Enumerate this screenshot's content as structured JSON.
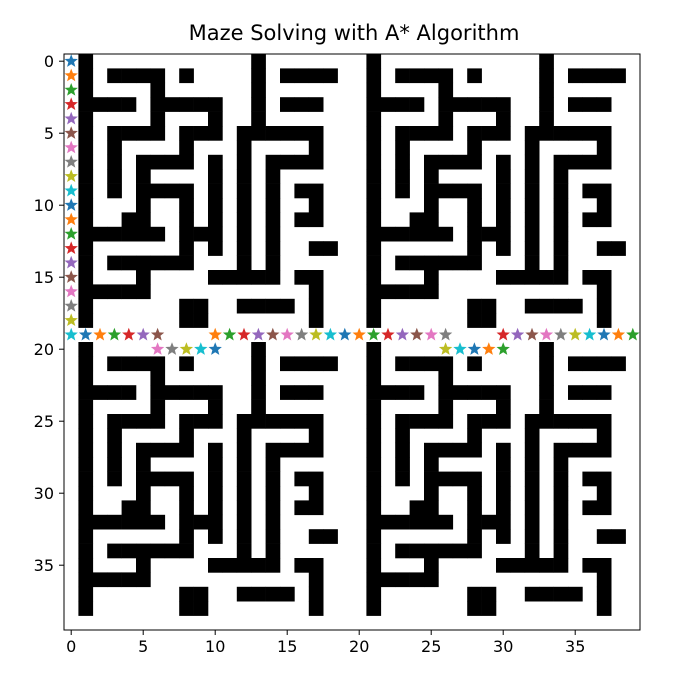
{
  "chart_data": {
    "type": "heatmap",
    "title": "Maze Solving with A* Algorithm",
    "xlabel": "",
    "ylabel": "",
    "grid": false,
    "rows": 40,
    "cols": 40,
    "xlim": [
      -0.5,
      39.5
    ],
    "ylim": [
      39.5,
      -0.5
    ],
    "x_ticks": [
      0,
      5,
      10,
      15,
      20,
      25,
      30,
      35
    ],
    "y_ticks": [
      0,
      5,
      10,
      15,
      20,
      25,
      30,
      35
    ],
    "wall_color": "#000000",
    "path_color": "#ffffff",
    "maze_quadrant": [
      "0100000000000100000",
      "0101111010000101111",
      "0100001000000100000",
      "0111101111100101110",
      "0100001000100100000",
      "0101111011101111110",
      "0101000010001000010",
      "0101011110101011110",
      "0101010000101010000",
      "0101011110101010110",
      "0100010010101010010",
      "0100110010101010110",
      "0111111011101010000",
      "0100000010101010011",
      "0101111110001010000",
      "0100010000111110110",
      "0111110000000000010",
      "0100000011001111010",
      "0100000011000000010",
      "0000000000000000000"
    ],
    "quadrant_offsets": [
      [
        0,
        0
      ],
      [
        0,
        20
      ],
      [
        20,
        0
      ],
      [
        20,
        20
      ]
    ],
    "marker_colors": [
      "#1f77b4",
      "#ff7f0e",
      "#2ca02c",
      "#d62728",
      "#9467bd",
      "#8c564b",
      "#e377c2",
      "#7f7f7f",
      "#bcbd22",
      "#17becf"
    ],
    "series": [
      {
        "type": "scatter",
        "marker": "star",
        "points": [
          [
            0,
            0
          ],
          [
            0,
            1
          ],
          [
            0,
            2
          ],
          [
            0,
            3
          ],
          [
            0,
            4
          ],
          [
            0,
            5
          ],
          [
            0,
            6
          ],
          [
            0,
            7
          ],
          [
            0,
            8
          ],
          [
            0,
            9
          ],
          [
            0,
            10
          ],
          [
            0,
            11
          ],
          [
            0,
            12
          ],
          [
            0,
            13
          ],
          [
            0,
            14
          ],
          [
            0,
            15
          ],
          [
            0,
            16
          ],
          [
            0,
            17
          ],
          [
            0,
            18
          ],
          [
            0,
            19
          ],
          [
            1,
            19
          ],
          [
            2,
            19
          ],
          [
            3,
            19
          ],
          [
            4,
            19
          ],
          [
            5,
            19
          ],
          [
            6,
            19
          ],
          [
            6,
            20
          ],
          [
            7,
            20
          ],
          [
            8,
            20
          ],
          [
            9,
            20
          ],
          [
            10,
            20
          ],
          [
            10,
            19
          ],
          [
            11,
            19
          ],
          [
            12,
            19
          ],
          [
            13,
            19
          ],
          [
            14,
            19
          ],
          [
            15,
            19
          ],
          [
            16,
            19
          ],
          [
            17,
            19
          ],
          [
            18,
            19
          ],
          [
            19,
            19
          ],
          [
            20,
            19
          ],
          [
            21,
            19
          ],
          [
            22,
            19
          ],
          [
            23,
            19
          ],
          [
            24,
            19
          ],
          [
            25,
            19
          ],
          [
            26,
            19
          ],
          [
            26,
            20
          ],
          [
            27,
            20
          ],
          [
            28,
            20
          ],
          [
            29,
            20
          ],
          [
            30,
            20
          ],
          [
            30,
            19
          ],
          [
            31,
            19
          ],
          [
            32,
            19
          ],
          [
            33,
            19
          ],
          [
            34,
            19
          ],
          [
            35,
            19
          ],
          [
            36,
            19
          ],
          [
            37,
            19
          ],
          [
            38,
            19
          ],
          [
            39,
            19
          ]
        ]
      }
    ]
  }
}
